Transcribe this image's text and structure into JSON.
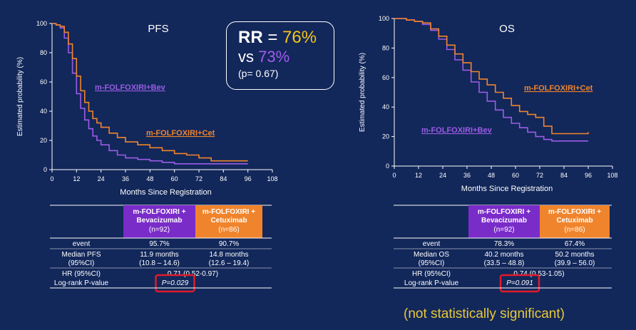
{
  "colors": {
    "background": "#12275a",
    "bev": "#9b5de5",
    "cet": "#f0842c",
    "yellow": "#f5c518",
    "highlight": "#e01b2a"
  },
  "rr_box": {
    "label": "RR",
    "eq": "=",
    "value_cet": "76%",
    "vs": "vs",
    "value_bev": "73%",
    "p": "(p= 0.67)"
  },
  "note": "(not statistically significant)",
  "chart_data": [
    {
      "type": "line",
      "title": "PFS",
      "xlabel": "Months Since Registration",
      "ylabel": "Estimated probability (%)",
      "xlim": [
        0,
        108
      ],
      "ylim": [
        0,
        100
      ],
      "xticks": [
        0,
        12,
        24,
        36,
        48,
        60,
        72,
        84,
        96,
        108
      ],
      "yticks": [
        0,
        20,
        40,
        60,
        80,
        100
      ],
      "series": [
        {
          "name": "m-FOLFOXIRI+Bev",
          "color": "#9b5de5",
          "points": [
            [
              0,
              100
            ],
            [
              2,
              99
            ],
            [
              4,
              97
            ],
            [
              6,
              90
            ],
            [
              8,
              80
            ],
            [
              10,
              66
            ],
            [
              12,
              52
            ],
            [
              14,
              42
            ],
            [
              16,
              34
            ],
            [
              18,
              28
            ],
            [
              20,
              23
            ],
            [
              22,
              20
            ],
            [
              24,
              17
            ],
            [
              28,
              13
            ],
            [
              32,
              10
            ],
            [
              36,
              8
            ],
            [
              42,
              7
            ],
            [
              48,
              6
            ],
            [
              54,
              5
            ],
            [
              60,
              4
            ],
            [
              72,
              4
            ],
            [
              84,
              4
            ],
            [
              96,
              4
            ]
          ]
        },
        {
          "name": "m-FOLFOXIRI+Cet",
          "color": "#f0842c",
          "points": [
            [
              0,
              100
            ],
            [
              2,
              99
            ],
            [
              4,
              98
            ],
            [
              6,
              94
            ],
            [
              8,
              86
            ],
            [
              10,
              76
            ],
            [
              12,
              64
            ],
            [
              14,
              54
            ],
            [
              16,
              46
            ],
            [
              18,
              40
            ],
            [
              20,
              35
            ],
            [
              22,
              32
            ],
            [
              24,
              29
            ],
            [
              28,
              25
            ],
            [
              32,
              22
            ],
            [
              36,
              19
            ],
            [
              42,
              17
            ],
            [
              48,
              15
            ],
            [
              54,
              13
            ],
            [
              60,
              11
            ],
            [
              66,
              10
            ],
            [
              72,
              8
            ],
            [
              78,
              6
            ],
            [
              84,
              6
            ],
            [
              90,
              6
            ],
            [
              96,
              6
            ]
          ]
        }
      ]
    },
    {
      "type": "line",
      "title": "OS",
      "xlabel": "Months Since Registration",
      "ylabel": "Estimated probability (%)",
      "xlim": [
        0,
        108
      ],
      "ylim": [
        0,
        100
      ],
      "xticks": [
        0,
        12,
        24,
        36,
        48,
        60,
        72,
        84,
        96,
        108
      ],
      "yticks": [
        0,
        20,
        40,
        60,
        80,
        100
      ],
      "series": [
        {
          "name": "m-FOLFOXIRI+Bev",
          "color": "#9b5de5",
          "points": [
            [
              0,
              100
            ],
            [
              6,
              99
            ],
            [
              10,
              98
            ],
            [
              14,
              96
            ],
            [
              18,
              92
            ],
            [
              22,
              86
            ],
            [
              26,
              79
            ],
            [
              30,
              72
            ],
            [
              34,
              65
            ],
            [
              38,
              57
            ],
            [
              42,
              50
            ],
            [
              46,
              44
            ],
            [
              50,
              38
            ],
            [
              54,
              33
            ],
            [
              58,
              29
            ],
            [
              62,
              26
            ],
            [
              66,
              23
            ],
            [
              70,
              20
            ],
            [
              74,
              18
            ],
            [
              78,
              17
            ],
            [
              84,
              17
            ],
            [
              90,
              17
            ],
            [
              96,
              17
            ]
          ]
        },
        {
          "name": "m-FOLFOXIRI+Cet",
          "color": "#f0842c",
          "points": [
            [
              0,
              100
            ],
            [
              6,
              99
            ],
            [
              10,
              98
            ],
            [
              14,
              97
            ],
            [
              18,
              93
            ],
            [
              22,
              88
            ],
            [
              26,
              82
            ],
            [
              30,
              76
            ],
            [
              34,
              70
            ],
            [
              38,
              64
            ],
            [
              42,
              59
            ],
            [
              46,
              55
            ],
            [
              50,
              50
            ],
            [
              54,
              46
            ],
            [
              58,
              41
            ],
            [
              62,
              37
            ],
            [
              66,
              35
            ],
            [
              70,
              33
            ],
            [
              74,
              27
            ],
            [
              78,
              22
            ],
            [
              84,
              22
            ],
            [
              90,
              22
            ],
            [
              96,
              23
            ]
          ]
        }
      ]
    }
  ],
  "tables": [
    {
      "col_bev": {
        "l1": "m-FOLFOXIRI +",
        "l2": "Bevacizumab",
        "l3": "(n=92)"
      },
      "col_cet": {
        "l1": "m-FOLFOXIRI +",
        "l2": "Cetuximab",
        "l3": "(n=86)"
      },
      "rows": [
        {
          "label": [
            "event"
          ],
          "bev": [
            "95.7%"
          ],
          "cet": [
            "90.7%"
          ]
        },
        {
          "label": [
            "Median PFS",
            "(95%CI)"
          ],
          "bev": [
            "11.9 months",
            "(10.8 – 14.6)"
          ],
          "cet": [
            "14.8 months",
            "(12.6 – 19.4)"
          ]
        }
      ],
      "hr_label": "HR (95%CI)",
      "hr_value": "0.71 (0.52-0.97)",
      "p_label": "Log-rank P-value",
      "p_value": "P=0.029"
    },
    {
      "col_bev": {
        "l1": "m-FOLFOXIRI +",
        "l2": "Bevacizumab",
        "l3": "(n=92)"
      },
      "col_cet": {
        "l1": "m-FOLFOXIRI +",
        "l2": "Cetuximab",
        "l3": "(n=86)"
      },
      "rows": [
        {
          "label": [
            "event"
          ],
          "bev": [
            "78.3%"
          ],
          "cet": [
            "67.4%"
          ]
        },
        {
          "label": [
            "Median OS",
            "(95%CI)"
          ],
          "bev": [
            "40.2 months",
            "(33.5 – 48.8)"
          ],
          "cet": [
            "50.2 months",
            "(39.9 – 56.0)"
          ]
        }
      ],
      "hr_label": "HR (95%CI)",
      "hr_value": "0.74 (0.53-1.05)",
      "p_label": "Log-rank P-value",
      "p_value": "P=0.091"
    }
  ]
}
